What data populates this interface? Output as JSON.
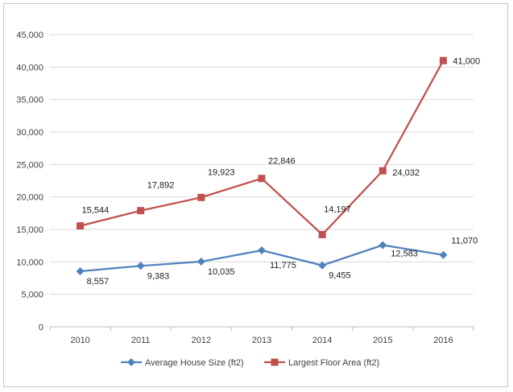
{
  "chart_data": {
    "type": "line",
    "title": "",
    "xlabel": "",
    "ylabel": "",
    "categories": [
      "2010",
      "2011",
      "2012",
      "2013",
      "2014",
      "2015",
      "2016"
    ],
    "ylim": [
      0,
      45000
    ],
    "yticks": [
      "0",
      "5,000",
      "10,000",
      "15,000",
      "20,000",
      "25,000",
      "30,000",
      "35,000",
      "40,000",
      "45,000"
    ],
    "grid": true,
    "legend_position": "bottom",
    "series": [
      {
        "name": "Average House Size (ft2)",
        "color": "#4f81bd",
        "marker": "diamond",
        "values": [
          8557,
          9383,
          10035,
          11775,
          9455,
          12583,
          11070
        ],
        "labels": [
          "8,557",
          "9,383",
          "10,035",
          "11,775",
          "9,455",
          "12,583",
          "11,070"
        ]
      },
      {
        "name": "Largest Floor Area (ft2)",
        "color": "#c0504d",
        "marker": "square",
        "values": [
          15544,
          17892,
          19923,
          22846,
          14197,
          24032,
          41000
        ],
        "labels": [
          "15,544",
          "17,892",
          "19,923",
          "22,846",
          "14,197",
          "24,032",
          "41,000"
        ]
      }
    ]
  }
}
